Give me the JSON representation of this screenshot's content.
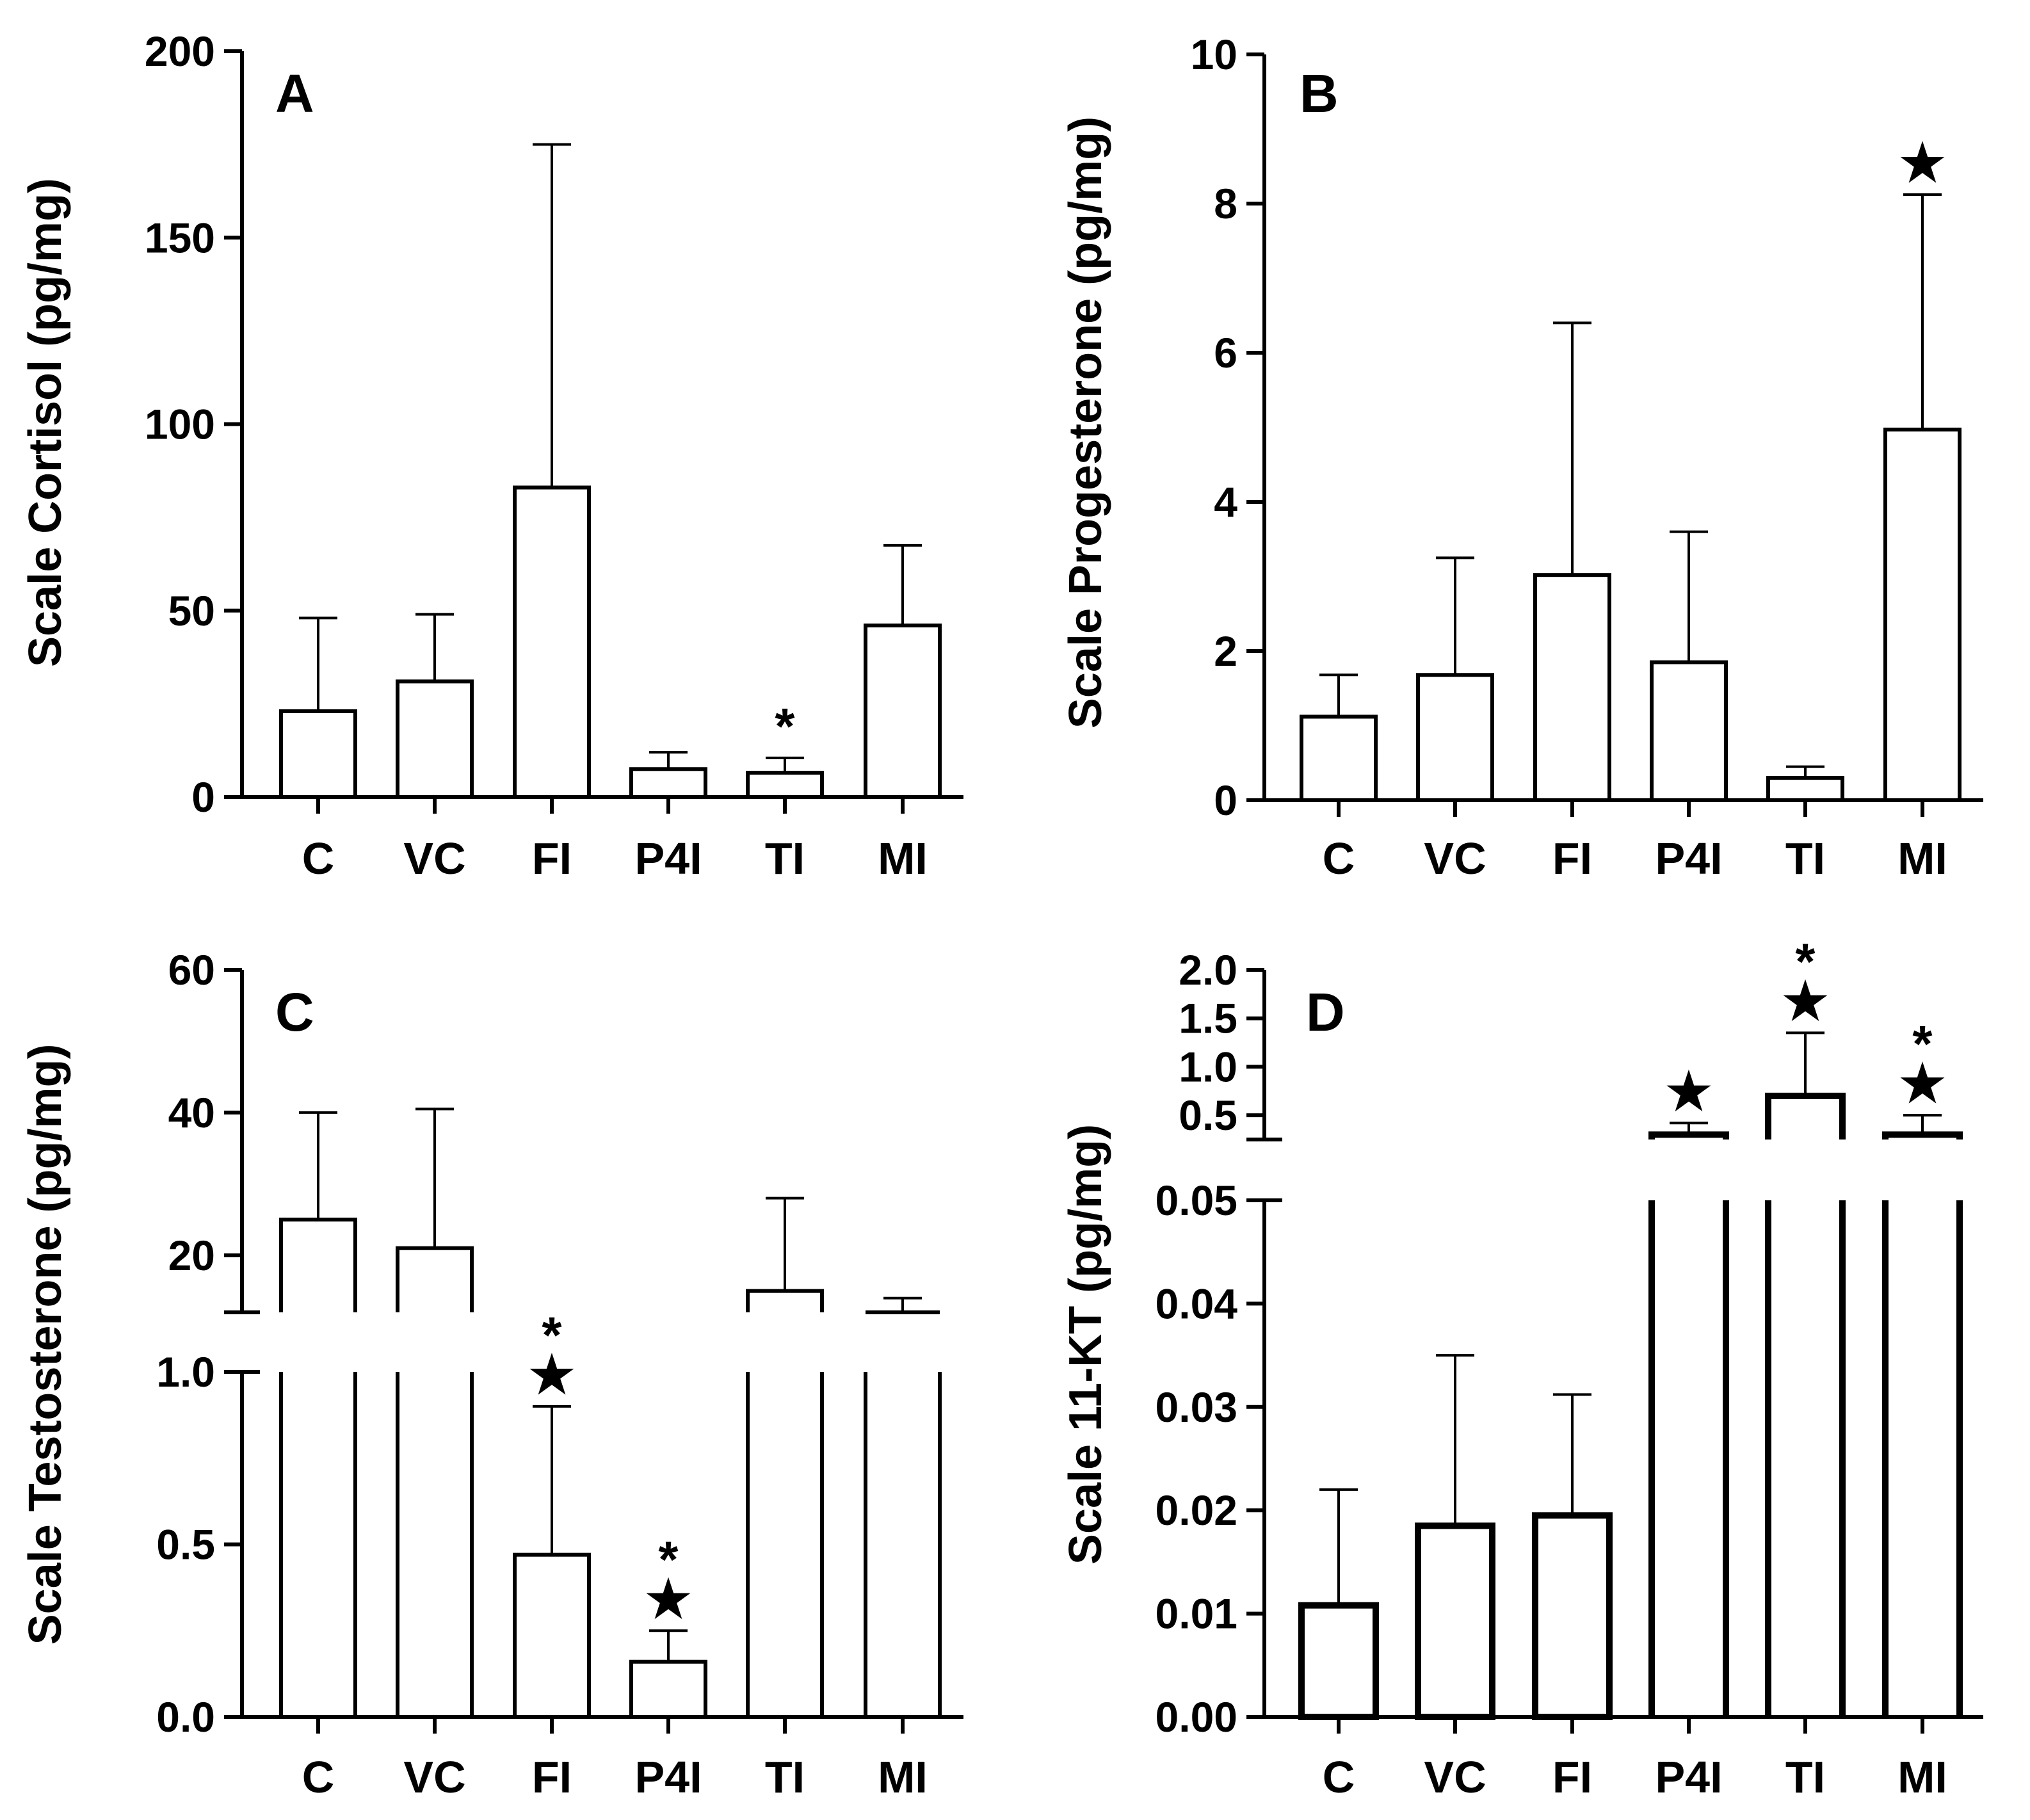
{
  "chart_data": [
    {
      "panel": "A",
      "type": "bar",
      "ylabel": "Scale Cortisol (pg/mg)",
      "categories": [
        "C",
        "VC",
        "FI",
        "P4I",
        "TI",
        "MI"
      ],
      "values": [
        23,
        31,
        83,
        7.5,
        6.5,
        46
      ],
      "errors": [
        48,
        49,
        175,
        12,
        10.5,
        67.5
      ],
      "annotations": [
        "",
        "",
        "",
        "",
        "*",
        ""
      ],
      "ylim": [
        0,
        200
      ],
      "yticks": [
        0,
        50,
        100,
        150,
        200
      ],
      "ytick_labels": [
        "0",
        "50",
        "100",
        "150",
        "200"
      ]
    },
    {
      "panel": "B",
      "type": "bar",
      "ylabel": "Scale Progesterone (pg/mg)",
      "categories": [
        "C",
        "VC",
        "FI",
        "P4I",
        "TI",
        "MI"
      ],
      "values": [
        1.12,
        1.68,
        3.02,
        1.85,
        0.3,
        4.97
      ],
      "errors": [
        1.68,
        3.25,
        6.4,
        3.6,
        0.45,
        8.12
      ],
      "annotations": [
        "",
        "",
        "",
        "",
        "",
        "★"
      ],
      "ylim": [
        0,
        10
      ],
      "yticks": [
        0,
        2,
        4,
        6,
        8,
        10
      ],
      "ytick_labels": [
        "0",
        "2",
        "4",
        "6",
        "8",
        "10"
      ]
    },
    {
      "panel": "C",
      "type": "bar",
      "ylabel": "Scale Testosterone (pg/mg)",
      "categories": [
        "C",
        "VC",
        "FI",
        "P4I",
        "TI",
        "MI"
      ],
      "values": [
        25,
        21,
        0.47,
        0.16,
        15,
        12
      ],
      "errors": [
        40,
        40.5,
        0.9,
        0.25,
        28,
        14
      ],
      "annotations": [
        "",
        "",
        "*\n★",
        "*\n★",
        "",
        ""
      ],
      "axis_break": true,
      "lower_ylim": [
        0,
        1.0
      ],
      "lower_yticks": [
        0,
        0.5,
        1.0
      ],
      "lower_ytick_labels": [
        "0.0",
        "0.5",
        "1.0"
      ],
      "upper_ylim": [
        12,
        60
      ],
      "upper_yticks": [
        20,
        40,
        60
      ],
      "upper_ytick_labels": [
        "20",
        "40",
        "60"
      ]
    },
    {
      "panel": "D",
      "type": "bar",
      "ylabel": "Scale 11-KT (pg/mg)",
      "categories": [
        "C",
        "VC",
        "FI",
        "P4I",
        "TI",
        "MI"
      ],
      "values": [
        0.0108,
        0.0185,
        0.0195,
        0.3,
        0.7,
        0.3
      ],
      "errors": [
        0.022,
        0.035,
        0.0312,
        0.42,
        1.35,
        0.5
      ],
      "annotations": [
        "",
        "",
        "",
        "★",
        "*\n★",
        "*\n★"
      ],
      "axis_break": true,
      "lower_ylim": [
        0,
        0.05
      ],
      "lower_yticks": [
        0,
        0.01,
        0.02,
        0.03,
        0.04,
        0.05
      ],
      "lower_ytick_labels": [
        "0.00",
        "0.01",
        "0.02",
        "0.03",
        "0.04",
        "0.05"
      ],
      "upper_ylim": [
        0.25,
        2.0
      ],
      "upper_yticks": [
        0.5,
        1.0,
        1.5,
        2.0
      ],
      "upper_ytick_labels": [
        "0.5",
        "1.0",
        "1.5",
        "2.0"
      ]
    }
  ]
}
